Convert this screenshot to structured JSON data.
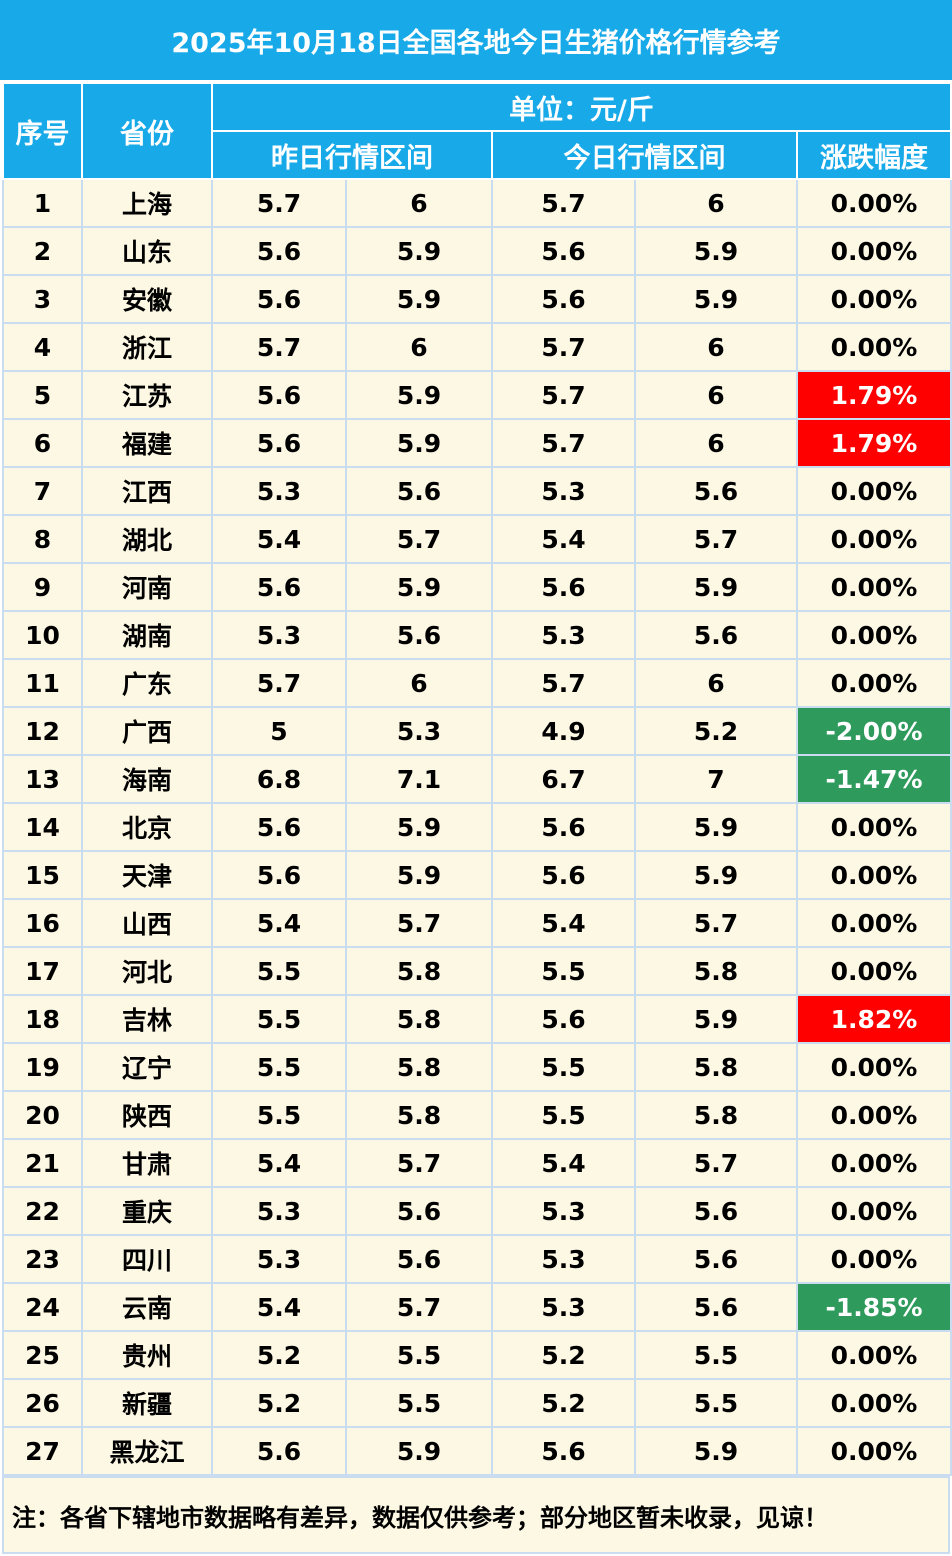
{
  "title": "2025年10月18日全国各地今日生猪价格行情参考",
  "header": {
    "index": "序号",
    "province": "省份",
    "unit": "单位：元/斤",
    "yesterday": "昨日行情区间",
    "today": "今日行情区间",
    "change": "涨跌幅度"
  },
  "colors": {
    "header_bg": "#17a9e8",
    "row_bg": "#fdf8e4",
    "rise": "#ff0000",
    "fall": "#2e9a5c"
  },
  "rows": [
    {
      "no": "1",
      "province": "上海",
      "y_low": "5.7",
      "y_high": "6",
      "t_low": "5.7",
      "t_high": "6",
      "change": "0.00%",
      "trend": "flat"
    },
    {
      "no": "2",
      "province": "山东",
      "y_low": "5.6",
      "y_high": "5.9",
      "t_low": "5.6",
      "t_high": "5.9",
      "change": "0.00%",
      "trend": "flat"
    },
    {
      "no": "3",
      "province": "安徽",
      "y_low": "5.6",
      "y_high": "5.9",
      "t_low": "5.6",
      "t_high": "5.9",
      "change": "0.00%",
      "trend": "flat"
    },
    {
      "no": "4",
      "province": "浙江",
      "y_low": "5.7",
      "y_high": "6",
      "t_low": "5.7",
      "t_high": "6",
      "change": "0.00%",
      "trend": "flat"
    },
    {
      "no": "5",
      "province": "江苏",
      "y_low": "5.6",
      "y_high": "5.9",
      "t_low": "5.7",
      "t_high": "6",
      "change": "1.79%",
      "trend": "up"
    },
    {
      "no": "6",
      "province": "福建",
      "y_low": "5.6",
      "y_high": "5.9",
      "t_low": "5.7",
      "t_high": "6",
      "change": "1.79%",
      "trend": "up"
    },
    {
      "no": "7",
      "province": "江西",
      "y_low": "5.3",
      "y_high": "5.6",
      "t_low": "5.3",
      "t_high": "5.6",
      "change": "0.00%",
      "trend": "flat"
    },
    {
      "no": "8",
      "province": "湖北",
      "y_low": "5.4",
      "y_high": "5.7",
      "t_low": "5.4",
      "t_high": "5.7",
      "change": "0.00%",
      "trend": "flat"
    },
    {
      "no": "9",
      "province": "河南",
      "y_low": "5.6",
      "y_high": "5.9",
      "t_low": "5.6",
      "t_high": "5.9",
      "change": "0.00%",
      "trend": "flat"
    },
    {
      "no": "10",
      "province": "湖南",
      "y_low": "5.3",
      "y_high": "5.6",
      "t_low": "5.3",
      "t_high": "5.6",
      "change": "0.00%",
      "trend": "flat"
    },
    {
      "no": "11",
      "province": "广东",
      "y_low": "5.7",
      "y_high": "6",
      "t_low": "5.7",
      "t_high": "6",
      "change": "0.00%",
      "trend": "flat"
    },
    {
      "no": "12",
      "province": "广西",
      "y_low": "5",
      "y_high": "5.3",
      "t_low": "4.9",
      "t_high": "5.2",
      "change": "-2.00%",
      "trend": "down"
    },
    {
      "no": "13",
      "province": "海南",
      "y_low": "6.8",
      "y_high": "7.1",
      "t_low": "6.7",
      "t_high": "7",
      "change": "-1.47%",
      "trend": "down"
    },
    {
      "no": "14",
      "province": "北京",
      "y_low": "5.6",
      "y_high": "5.9",
      "t_low": "5.6",
      "t_high": "5.9",
      "change": "0.00%",
      "trend": "flat"
    },
    {
      "no": "15",
      "province": "天津",
      "y_low": "5.6",
      "y_high": "5.9",
      "t_low": "5.6",
      "t_high": "5.9",
      "change": "0.00%",
      "trend": "flat"
    },
    {
      "no": "16",
      "province": "山西",
      "y_low": "5.4",
      "y_high": "5.7",
      "t_low": "5.4",
      "t_high": "5.7",
      "change": "0.00%",
      "trend": "flat"
    },
    {
      "no": "17",
      "province": "河北",
      "y_low": "5.5",
      "y_high": "5.8",
      "t_low": "5.5",
      "t_high": "5.8",
      "change": "0.00%",
      "trend": "flat"
    },
    {
      "no": "18",
      "province": "吉林",
      "y_low": "5.5",
      "y_high": "5.8",
      "t_low": "5.6",
      "t_high": "5.9",
      "change": "1.82%",
      "trend": "up"
    },
    {
      "no": "19",
      "province": "辽宁",
      "y_low": "5.5",
      "y_high": "5.8",
      "t_low": "5.5",
      "t_high": "5.8",
      "change": "0.00%",
      "trend": "flat"
    },
    {
      "no": "20",
      "province": "陕西",
      "y_low": "5.5",
      "y_high": "5.8",
      "t_low": "5.5",
      "t_high": "5.8",
      "change": "0.00%",
      "trend": "flat"
    },
    {
      "no": "21",
      "province": "甘肃",
      "y_low": "5.4",
      "y_high": "5.7",
      "t_low": "5.4",
      "t_high": "5.7",
      "change": "0.00%",
      "trend": "flat"
    },
    {
      "no": "22",
      "province": "重庆",
      "y_low": "5.3",
      "y_high": "5.6",
      "t_low": "5.3",
      "t_high": "5.6",
      "change": "0.00%",
      "trend": "flat"
    },
    {
      "no": "23",
      "province": "四川",
      "y_low": "5.3",
      "y_high": "5.6",
      "t_low": "5.3",
      "t_high": "5.6",
      "change": "0.00%",
      "trend": "flat"
    },
    {
      "no": "24",
      "province": "云南",
      "y_low": "5.4",
      "y_high": "5.7",
      "t_low": "5.3",
      "t_high": "5.6",
      "change": "-1.85%",
      "trend": "down"
    },
    {
      "no": "25",
      "province": "贵州",
      "y_low": "5.2",
      "y_high": "5.5",
      "t_low": "5.2",
      "t_high": "5.5",
      "change": "0.00%",
      "trend": "flat"
    },
    {
      "no": "26",
      "province": "新疆",
      "y_low": "5.2",
      "y_high": "5.5",
      "t_low": "5.2",
      "t_high": "5.5",
      "change": "0.00%",
      "trend": "flat"
    },
    {
      "no": "27",
      "province": "黑龙江",
      "y_low": "5.6",
      "y_high": "5.9",
      "t_low": "5.6",
      "t_high": "5.9",
      "change": "0.00%",
      "trend": "flat"
    }
  ],
  "footer_note": "注：各省下辖地市数据略有差异，数据仅供参考；部分地区暂未收录，见谅！"
}
